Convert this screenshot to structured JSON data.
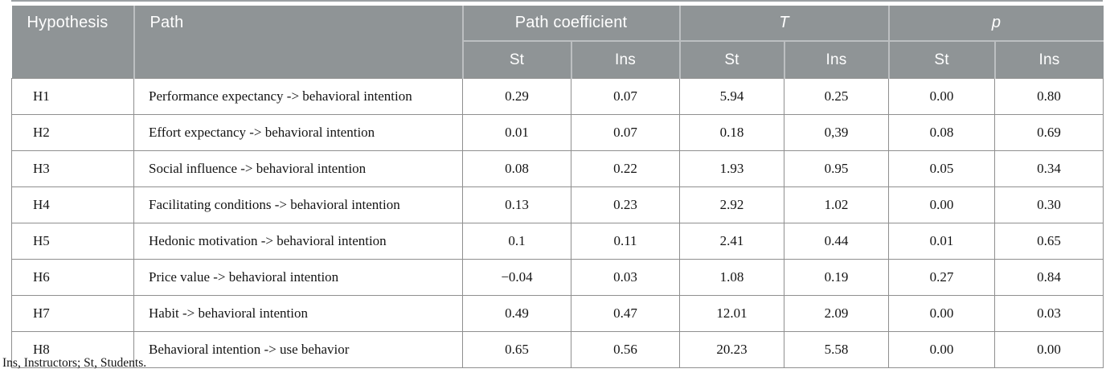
{
  "table": {
    "header": {
      "hypothesis": "Hypothesis",
      "path": "Path",
      "groups": [
        {
          "label": "Path coefficient",
          "italic": false
        },
        {
          "label": "T",
          "italic": true
        },
        {
          "label": "p",
          "italic": true
        }
      ],
      "subcols": [
        "St",
        "Ins",
        "St",
        "Ins",
        "St",
        "Ins"
      ]
    },
    "rows": [
      {
        "hypothesis": "H1",
        "path": "Performance expectancy -> behavioral intention",
        "values": [
          "0.29",
          "0.07",
          "5.94",
          "0.25",
          "0.00",
          "0.80"
        ]
      },
      {
        "hypothesis": "H2",
        "path": "Effort expectancy -> behavioral intention",
        "values": [
          "0.01",
          "0.07",
          "0.18",
          "0,39",
          "0.08",
          "0.69"
        ]
      },
      {
        "hypothesis": "H3",
        "path": "Social influence -> behavioral intention",
        "values": [
          "0.08",
          "0.22",
          "1.93",
          "0.95",
          "0.05",
          "0.34"
        ]
      },
      {
        "hypothesis": "H4",
        "path": "Facilitating conditions -> behavioral intention",
        "values": [
          "0.13",
          "0.23",
          "2.92",
          "1.02",
          "0.00",
          "0.30"
        ]
      },
      {
        "hypothesis": "H5",
        "path": "Hedonic motivation -> behavioral intention",
        "values": [
          "0.1",
          "0.11",
          "2.41",
          "0.44",
          "0.01",
          "0.65"
        ]
      },
      {
        "hypothesis": "H6",
        "path": "Price value -> behavioral intention",
        "values": [
          "−0.04",
          "0.03",
          "1.08",
          "0.19",
          "0.27",
          "0.84"
        ]
      },
      {
        "hypothesis": "H7",
        "path": "Habit -> behavioral intention",
        "values": [
          "0.49",
          "0.47",
          "12.01",
          "2.09",
          "0.00",
          "0.03"
        ]
      },
      {
        "hypothesis": "H8",
        "path": "Behavioral intention -> use behavior",
        "values": [
          "0.65",
          "0.56",
          "20.23",
          "5.58",
          "0.00",
          "0.00"
        ]
      }
    ],
    "footnote": "Ins, Instructors; St, Students.",
    "colors": {
      "header_bg": "#8f9496",
      "header_text": "#ffffff",
      "header_divider": "#bcbfc1",
      "body_border": "#8f8f8f",
      "top_rule": "#9ba0a3"
    }
  }
}
